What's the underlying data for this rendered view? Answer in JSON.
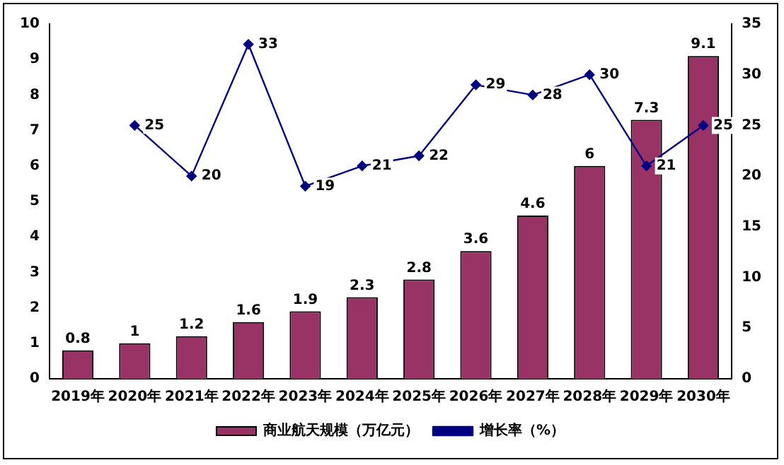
{
  "chart_data": {
    "type": "bar",
    "categories": [
      "2019年",
      "2020年",
      "2021年",
      "2022年",
      "2023年",
      "2024年",
      "2025年",
      "2026年",
      "2027年",
      "2028年",
      "2029年",
      "2030年"
    ],
    "series": [
      {
        "name": "商业航天规模（万亿元）",
        "color": "#993366",
        "values": [
          0.8,
          1,
          1.2,
          1.6,
          1.9,
          2.3,
          2.8,
          3.6,
          4.6,
          6,
          7.3,
          9.1
        ]
      },
      {
        "name": "增长率（%）",
        "type": "line",
        "axis": "y2",
        "color": "#000080",
        "values": [
          null,
          25,
          20,
          33,
          19,
          21,
          22,
          29,
          28,
          30,
          21,
          25
        ]
      }
    ],
    "ylim": [
      0,
      10
    ],
    "yticks": [
      0,
      1,
      2,
      3,
      4,
      5,
      6,
      7,
      8,
      9,
      10
    ],
    "y2lim": [
      0,
      35
    ],
    "y2ticks": [
      0,
      5,
      10,
      15,
      20,
      25,
      30,
      35
    ],
    "data_labels": true,
    "legend": "bottom",
    "grid": false,
    "marker": "diamond",
    "line_style": "solid"
  }
}
